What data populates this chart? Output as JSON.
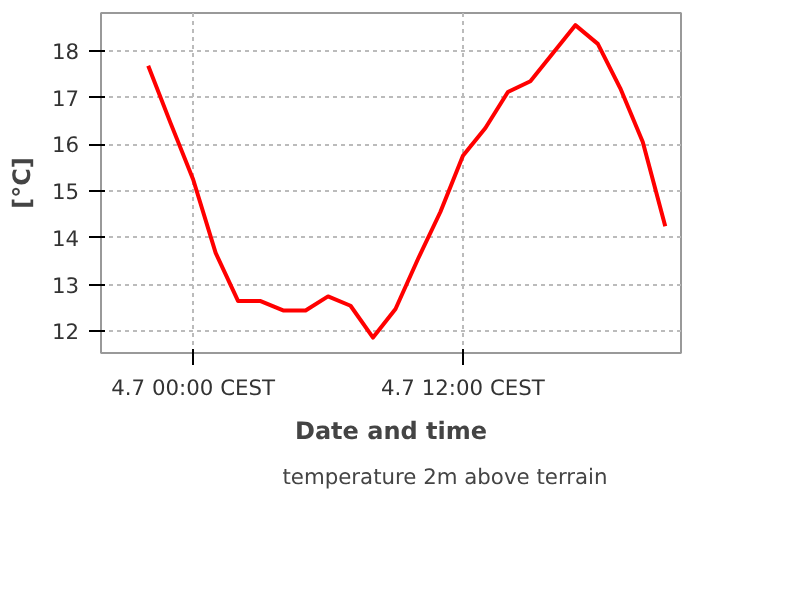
{
  "chart_data": {
    "type": "line",
    "xlabel": "Date and time",
    "ylabel": "[°C]",
    "categories": [
      null,
      null,
      "4.7 00:00 CEST",
      null,
      null,
      null,
      null,
      null,
      null,
      null,
      null,
      null,
      null,
      null,
      "4.7 12:00 CEST",
      null,
      null,
      null,
      null,
      null,
      null,
      null,
      null,
      null
    ],
    "series": [
      {
        "name": "temperature 2m above terrain",
        "color": "#ff0000",
        "values": [
          17.68,
          16.45,
          15.25,
          13.68,
          12.65,
          12.65,
          12.45,
          12.45,
          12.75,
          12.55,
          11.87,
          12.48,
          13.55,
          14.56,
          15.76,
          16.35,
          17.12,
          17.35,
          17.95,
          18.55,
          18.15,
          17.2,
          16.05,
          14.25
        ]
      }
    ],
    "ylim": [
      11.54,
      18.81
    ],
    "yticks": [
      12,
      13,
      14,
      15,
      16,
      17,
      18
    ],
    "grid": true,
    "legend": "bottom",
    "marker": "none",
    "line_style": "solid"
  }
}
